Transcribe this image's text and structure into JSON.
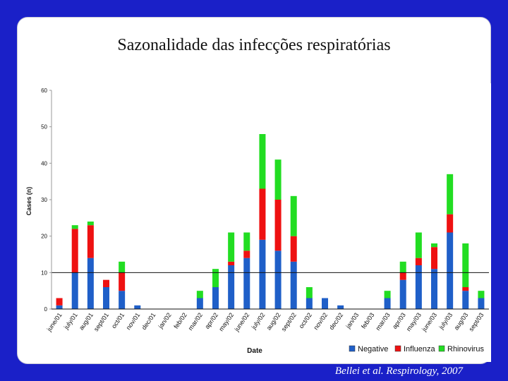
{
  "slide": {
    "title": "Sazonalidade das infecções respiratórias",
    "citation": "Bellei et al. Respirology, 2007"
  },
  "chart_data": {
    "type": "bar",
    "stacked": true,
    "xlabel": "Date",
    "ylabel": "Cases (n)",
    "ylim": [
      0,
      60
    ],
    "yticks": [
      0,
      10,
      20,
      30,
      40,
      50,
      60
    ],
    "grid": false,
    "reference_line_y": 10,
    "legend_position": "bottom-right",
    "categories": [
      "june/01",
      "july/01",
      "aug/01",
      "sept/01",
      "oct/01",
      "nov/01",
      "dec/01",
      "jan/02",
      "feb/02",
      "mar/02",
      "apr/02",
      "may/02",
      "june/02",
      "july/02",
      "aug/02",
      "sept/02",
      "oct/02",
      "nov/02",
      "dec/02",
      "jan/03",
      "feb/03",
      "mar/03",
      "apr/03",
      "may/03",
      "june/03",
      "july/03",
      "aug/03",
      "sept/03"
    ],
    "series": [
      {
        "name": "Negative",
        "color": "#1f5fc8",
        "values": [
          1,
          10,
          14,
          6,
          5,
          1,
          0,
          0,
          0,
          3,
          6,
          12,
          14,
          19,
          16,
          13,
          3,
          3,
          1,
          0,
          0,
          3,
          8,
          12,
          11,
          21,
          5,
          3
        ]
      },
      {
        "name": "Influenza",
        "color": "#ee1111",
        "values": [
          2,
          12,
          9,
          2,
          5,
          0,
          0,
          0,
          0,
          0,
          0,
          1,
          2,
          14,
          14,
          7,
          0,
          0,
          0,
          0,
          0,
          0,
          2,
          2,
          6,
          5,
          1,
          0
        ]
      },
      {
        "name": "Rhinovirus",
        "color": "#22dd22",
        "values": [
          0,
          1,
          1,
          0,
          3,
          0,
          0,
          0,
          0,
          2,
          5,
          8,
          5,
          15,
          11,
          11,
          3,
          0,
          0,
          0,
          0,
          2,
          3,
          7,
          1,
          11,
          12,
          2
        ]
      }
    ]
  }
}
